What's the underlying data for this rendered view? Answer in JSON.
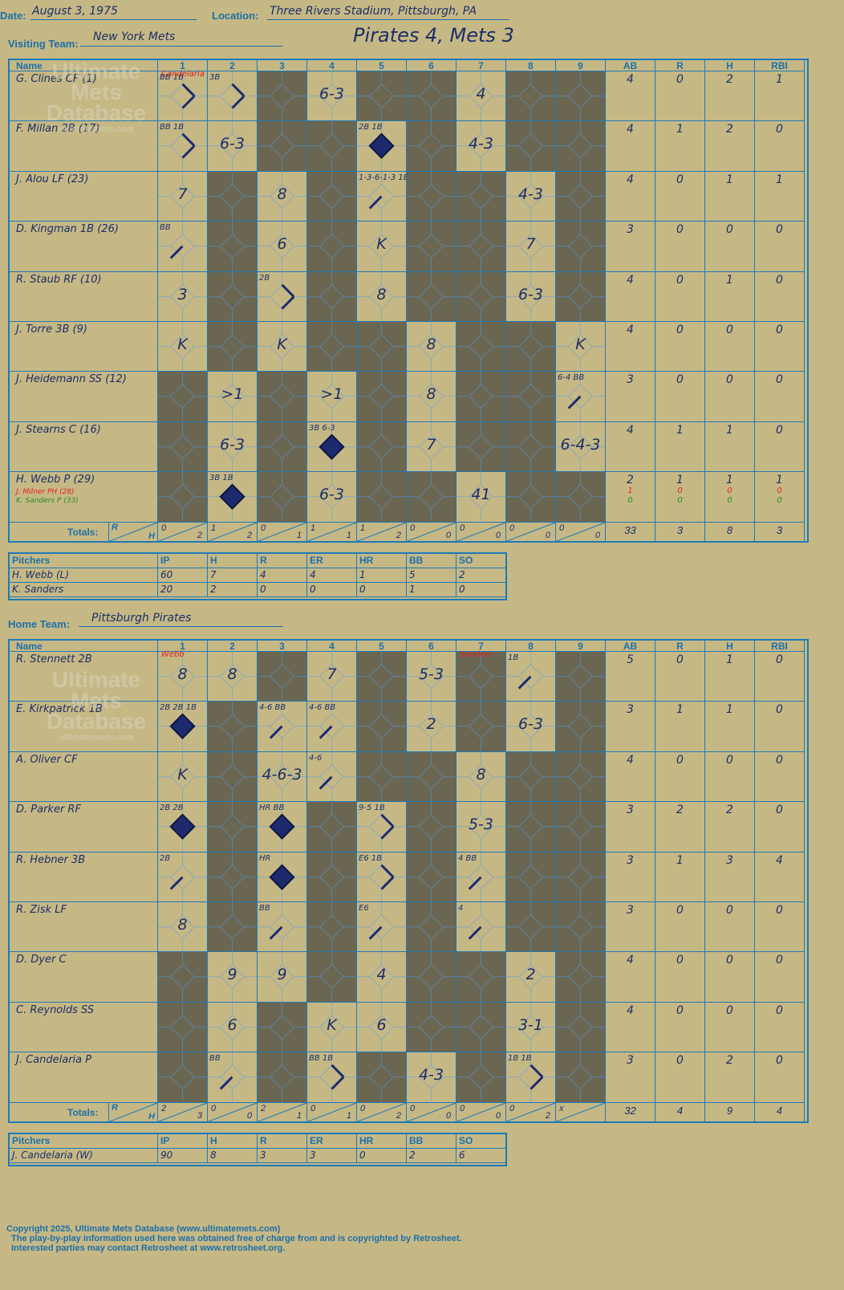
{
  "header": {
    "date_label": "Date:",
    "date": "August 3, 1975",
    "location_label": "Location:",
    "location": "Three Rivers Stadium, Pittsburgh, PA",
    "headline": "Pirates 4, Mets 3"
  },
  "visiting": {
    "team_label": "Visiting Team:",
    "team": "New York Mets",
    "pitchers_label": "Pitchers",
    "totals_label": "Totals:"
  },
  "home": {
    "team_label": "Home Team:",
    "team": "Pittsburgh Pirates",
    "pitchers_label": "Pitchers",
    "totals_label": "Totals:"
  },
  "col_headers": [
    "Name",
    "1",
    "2",
    "3",
    "4",
    "5",
    "6",
    "7",
    "8",
    "9",
    "AB",
    "R",
    "H",
    "RBI"
  ],
  "pitch_headers": [
    "IP",
    "H",
    "R",
    "ER",
    "HR",
    "BB",
    "SO"
  ],
  "rh": {
    "r": "R",
    "h": "H"
  },
  "away_rows": [
    {
      "name": "G. Clines CF (1)",
      "stats": [
        "4",
        "0",
        "2",
        "1"
      ]
    },
    {
      "name": "F. Millan 2B (17)",
      "stats": [
        "4",
        "1",
        "2",
        "0"
      ]
    },
    {
      "name": "J. Alou LF (23)",
      "stats": [
        "4",
        "0",
        "1",
        "1"
      ]
    },
    {
      "name": "D. Kingman 1B (26)",
      "stats": [
        "3",
        "0",
        "0",
        "0"
      ]
    },
    {
      "name": "R. Staub RF (10)",
      "stats": [
        "4",
        "0",
        "1",
        "0"
      ]
    },
    {
      "name": "J. Torre 3B (9)",
      "stats": [
        "4",
        "0",
        "0",
        "0"
      ]
    },
    {
      "name": "J. Heidemann SS (12)",
      "stats": [
        "3",
        "0",
        "0",
        "0"
      ]
    },
    {
      "name": "J. Stearns C (16)",
      "stats": [
        "4",
        "1",
        "1",
        "0"
      ]
    },
    {
      "name": "H. Webb P (29)",
      "subs": [
        "J. Milner PH (28)",
        "K. Sanders P (33)"
      ],
      "stats": [
        "2",
        "1",
        "1",
        "1"
      ],
      "substats": [
        [
          "1",
          "0",
          "0",
          "0"
        ],
        [
          "0",
          "0",
          "0",
          "0"
        ]
      ]
    }
  ],
  "home_rows": [
    {
      "name": "R. Stennett 2B",
      "stats": [
        "5",
        "0",
        "1",
        "0"
      ]
    },
    {
      "name": "E. Kirkpatrick 1B",
      "stats": [
        "3",
        "1",
        "1",
        "0"
      ]
    },
    {
      "name": "A. Oliver CF",
      "stats": [
        "4",
        "0",
        "0",
        "0"
      ]
    },
    {
      "name": "D. Parker RF",
      "stats": [
        "3",
        "2",
        "2",
        "0"
      ]
    },
    {
      "name": "R. Hebner 3B",
      "stats": [
        "3",
        "1",
        "3",
        "4"
      ]
    },
    {
      "name": "R. Zisk LF",
      "stats": [
        "3",
        "0",
        "0",
        "0"
      ]
    },
    {
      "name": "D. Dyer C",
      "stats": [
        "4",
        "0",
        "0",
        "0"
      ]
    },
    {
      "name": "C. Reynolds SS",
      "stats": [
        "4",
        "0",
        "0",
        "0"
      ]
    },
    {
      "name": "J. Candelaria P",
      "stats": [
        "3",
        "0",
        "2",
        "0"
      ]
    }
  ],
  "away_plays": [
    [
      [
        "BB 1B",
        "r"
      ],
      [
        "3B",
        "r"
      ],
      null,
      [
        "6-3"
      ],
      null,
      null,
      [
        "4"
      ],
      null,
      null
    ],
    [
      [
        "BB 1B",
        "r"
      ],
      [
        "6-3"
      ],
      null,
      null,
      [
        "2B 1B",
        "s"
      ],
      null,
      [
        "4-3"
      ],
      null,
      null
    ],
    [
      [
        "7"
      ],
      null,
      [
        "8"
      ],
      null,
      [
        "1-3-6-1-3 1B",
        "b"
      ],
      null,
      null,
      [
        "4-3"
      ],
      null
    ],
    [
      [
        "BB",
        "b"
      ],
      null,
      [
        "6"
      ],
      null,
      [
        "K"
      ],
      null,
      null,
      [
        "7"
      ],
      null
    ],
    [
      [
        "3"
      ],
      null,
      [
        "2B",
        "r"
      ],
      null,
      [
        "8"
      ],
      null,
      null,
      [
        "6-3"
      ],
      null
    ],
    [
      [
        "K"
      ],
      null,
      [
        "K"
      ],
      null,
      null,
      [
        "8"
      ],
      null,
      null,
      [
        "K"
      ]
    ],
    [
      null,
      [
        ">1"
      ],
      null,
      [
        ">1"
      ],
      null,
      [
        "8"
      ],
      null,
      null,
      [
        "6-4 BB",
        "b"
      ]
    ],
    [
      null,
      [
        "6-3"
      ],
      null,
      [
        "3B 6-3",
        "s"
      ],
      null,
      [
        "7"
      ],
      null,
      null,
      [
        "6-4-3"
      ]
    ],
    [
      null,
      [
        "3B 1B",
        "s"
      ],
      null,
      [
        "6-3"
      ],
      null,
      null,
      [
        "41"
      ],
      null,
      null
    ]
  ],
  "home_plays": [
    [
      [
        "8"
      ],
      [
        "8"
      ],
      null,
      [
        "7"
      ],
      null,
      [
        "5-3"
      ],
      null,
      [
        "1B",
        "b"
      ],
      null
    ],
    [
      [
        "2B 2B 1B",
        "s"
      ],
      null,
      [
        "4-6 BB",
        "b"
      ],
      [
        "4-6 BB",
        "b"
      ],
      null,
      [
        "2"
      ],
      null,
      [
        "6-3"
      ],
      null
    ],
    [
      [
        "K"
      ],
      null,
      [
        "4-6-3"
      ],
      [
        "4-6",
        "b"
      ],
      null,
      null,
      [
        "8"
      ],
      null,
      null
    ],
    [
      [
        "2B 2B",
        "s"
      ],
      null,
      [
        "HR BB",
        "s"
      ],
      null,
      [
        "9-5 1B",
        "r"
      ],
      null,
      [
        "5-3"
      ],
      null,
      null
    ],
    [
      [
        "2B",
        "b"
      ],
      null,
      [
        "HR",
        "s"
      ],
      null,
      [
        "E6 1B",
        "r"
      ],
      null,
      [
        "4 BB",
        "b"
      ],
      null,
      null
    ],
    [
      [
        "8"
      ],
      null,
      [
        "BB",
        "b"
      ],
      null,
      [
        "E6",
        "b"
      ],
      null,
      [
        "4",
        "b"
      ],
      null,
      null
    ],
    [
      null,
      [
        "9"
      ],
      [
        "9"
      ],
      null,
      [
        "4"
      ],
      null,
      null,
      [
        "2"
      ],
      null
    ],
    [
      null,
      [
        "6"
      ],
      null,
      [
        "K"
      ],
      [
        "6"
      ],
      null,
      null,
      [
        "3-1"
      ],
      null
    ],
    [
      null,
      [
        "BB",
        "b"
      ],
      null,
      [
        "BB 1B",
        "r"
      ],
      null,
      [
        "4-3"
      ],
      null,
      [
        "1B 1B",
        "r"
      ],
      null
    ]
  ],
  "away_annotations": {
    "pitcher_change_1": "Candelaria"
  },
  "home_annotations": {
    "pitcher_change_1": "Webb",
    "pitcher_change_7": "Sanders"
  },
  "away_totals": {
    "inn": [
      [
        "0",
        "2"
      ],
      [
        "1",
        "2"
      ],
      [
        "0",
        "1"
      ],
      [
        "1",
        "1"
      ],
      [
        "1",
        "2"
      ],
      [
        "0",
        "0"
      ],
      [
        "0",
        "0"
      ],
      [
        "0",
        "0"
      ],
      [
        "0",
        "0"
      ]
    ],
    "stats": [
      "33",
      "3",
      "8",
      "3"
    ]
  },
  "home_totals": {
    "inn": [
      [
        "2",
        "3"
      ],
      [
        "0",
        "0"
      ],
      [
        "2",
        "1"
      ],
      [
        "0",
        "1"
      ],
      [
        "0",
        "2"
      ],
      [
        "0",
        "0"
      ],
      [
        "0",
        "0"
      ],
      [
        "0",
        "2"
      ],
      [
        "x",
        ""
      ]
    ],
    "stats": [
      "32",
      "4",
      "9",
      "4"
    ]
  },
  "away_pitchers": [
    {
      "name": "H. Webb (L)",
      "vals": [
        "60",
        "7",
        "4",
        "4",
        "1",
        "5",
        "2"
      ]
    },
    {
      "name": "K. Sanders",
      "vals": [
        "20",
        "2",
        "0",
        "0",
        "0",
        "1",
        "0"
      ]
    }
  ],
  "home_pitchers": [
    {
      "name": "J. Candelaria (W)",
      "vals": [
        "90",
        "8",
        "3",
        "3",
        "0",
        "2",
        "6"
      ]
    }
  ],
  "watermark": {
    "line1": "Ultimate",
    "line2": "Mets",
    "line3": "Database",
    "line4": "ultimatemets.com"
  },
  "footer": {
    "line1": "Copyright 2025, Ultimate Mets Database (www.ultimatemets.com)",
    "line2": "The play-by-play information used here was obtained free of charge from and is copyrighted by Retrosheet.",
    "line3": "Interested parties may contact Retrosheet at www.retrosheet.org."
  },
  "colors": {
    "paper": "#c6b885",
    "dark_cell": "#6b6651",
    "grid": "#1d7ab8",
    "ink": "#1c2e68",
    "red": "#e02020",
    "green": "#2a8a2a"
  }
}
